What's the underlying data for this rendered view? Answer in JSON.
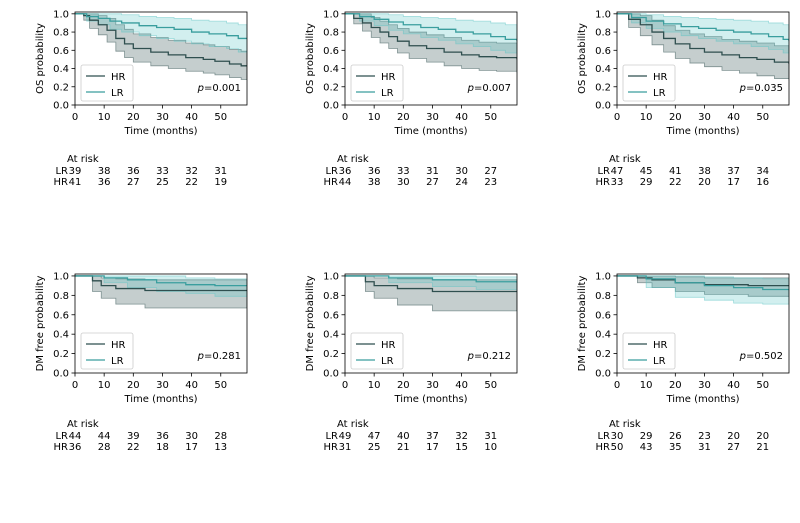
{
  "colors": {
    "HR": "#2f4f4f",
    "LR": "#3a9e9e",
    "HR_band": "#2f4f4f",
    "LR_band": "#5fc4c4"
  },
  "legend_labels": [
    "HR",
    "LR"
  ],
  "at_risk_label": "At risk",
  "chart_data": [
    {
      "id": "os1",
      "type": "line",
      "title": "",
      "xlabel": "Time (months)",
      "ylabel": "OS probability",
      "xlim": [
        0,
        59
      ],
      "ylim": [
        0,
        1.02
      ],
      "xticks": [
        0,
        10,
        20,
        30,
        40,
        50
      ],
      "yticks": [
        0.0,
        0.2,
        0.4,
        0.6,
        0.8,
        1.0
      ],
      "p_value": "p=0.001",
      "series": [
        {
          "name": "HR",
          "points": [
            [
              0,
              1
            ],
            [
              3,
              0.98
            ],
            [
              5,
              0.93
            ],
            [
              8,
              0.88
            ],
            [
              11,
              0.82
            ],
            [
              14,
              0.73
            ],
            [
              17,
              0.67
            ],
            [
              20,
              0.62
            ],
            [
              26,
              0.58
            ],
            [
              32,
              0.55
            ],
            [
              38,
              0.52
            ],
            [
              44,
              0.5
            ],
            [
              48,
              0.48
            ],
            [
              53,
              0.45
            ],
            [
              57,
              0.43
            ],
            [
              59,
              0.43
            ]
          ],
          "upper": [
            1,
            1,
            1,
            0.98,
            0.95,
            0.88,
            0.83,
            0.78,
            0.74,
            0.71,
            0.68,
            0.66,
            0.64,
            0.61,
            0.59,
            0.59
          ],
          "lower": [
            1,
            0.93,
            0.84,
            0.77,
            0.69,
            0.59,
            0.52,
            0.47,
            0.43,
            0.4,
            0.37,
            0.35,
            0.33,
            0.3,
            0.28,
            0.28
          ]
        },
        {
          "name": "LR",
          "points": [
            [
              0,
              1
            ],
            [
              4,
              0.97
            ],
            [
              8,
              0.95
            ],
            [
              12,
              0.92
            ],
            [
              16,
              0.9
            ],
            [
              22,
              0.87
            ],
            [
              28,
              0.85
            ],
            [
              34,
              0.83
            ],
            [
              40,
              0.8
            ],
            [
              46,
              0.78
            ],
            [
              52,
              0.76
            ],
            [
              56,
              0.73
            ],
            [
              59,
              0.73
            ]
          ],
          "upper": [
            1,
            1,
            1,
            1,
            0.99,
            0.97,
            0.96,
            0.95,
            0.93,
            0.92,
            0.9,
            0.88,
            0.88
          ],
          "lower": [
            1,
            0.92,
            0.88,
            0.83,
            0.8,
            0.76,
            0.73,
            0.7,
            0.67,
            0.64,
            0.62,
            0.58,
            0.58
          ]
        }
      ],
      "at_risk": {
        "LR": [
          39,
          38,
          36,
          33,
          32,
          31
        ],
        "HR": [
          41,
          36,
          27,
          25,
          22,
          19
        ]
      }
    },
    {
      "id": "os2",
      "type": "line",
      "title": "",
      "xlabel": "Time (months)",
      "ylabel": "OS probability",
      "xlim": [
        0,
        59
      ],
      "ylim": [
        0,
        1.02
      ],
      "xticks": [
        0,
        10,
        20,
        30,
        40,
        50
      ],
      "yticks": [
        0.0,
        0.2,
        0.4,
        0.6,
        0.8,
        1.0
      ],
      "p_value": "p=0.007",
      "series": [
        {
          "name": "HR",
          "points": [
            [
              0,
              1
            ],
            [
              3,
              0.95
            ],
            [
              6,
              0.9
            ],
            [
              9,
              0.85
            ],
            [
              12,
              0.8
            ],
            [
              15,
              0.75
            ],
            [
              18,
              0.7
            ],
            [
              22,
              0.65
            ],
            [
              28,
              0.62
            ],
            [
              34,
              0.58
            ],
            [
              40,
              0.55
            ],
            [
              46,
              0.53
            ],
            [
              52,
              0.52
            ],
            [
              59,
              0.5
            ]
          ],
          "upper": [
            1,
            1,
            1,
            0.96,
            0.92,
            0.88,
            0.84,
            0.8,
            0.77,
            0.74,
            0.71,
            0.69,
            0.68,
            0.66
          ],
          "lower": [
            1,
            0.89,
            0.81,
            0.74,
            0.68,
            0.62,
            0.57,
            0.51,
            0.47,
            0.43,
            0.4,
            0.38,
            0.37,
            0.35
          ]
        },
        {
          "name": "LR",
          "points": [
            [
              0,
              1
            ],
            [
              5,
              0.97
            ],
            [
              10,
              0.94
            ],
            [
              15,
              0.91
            ],
            [
              20,
              0.88
            ],
            [
              26,
              0.85
            ],
            [
              32,
              0.83
            ],
            [
              38,
              0.8
            ],
            [
              44,
              0.78
            ],
            [
              50,
              0.75
            ],
            [
              55,
              0.72
            ],
            [
              59,
              0.7
            ]
          ],
          "upper": [
            1,
            1,
            1,
            0.99,
            0.97,
            0.96,
            0.95,
            0.93,
            0.92,
            0.9,
            0.88,
            0.87
          ],
          "lower": [
            1,
            0.92,
            0.87,
            0.82,
            0.78,
            0.74,
            0.71,
            0.67,
            0.64,
            0.6,
            0.57,
            0.54
          ]
        }
      ],
      "at_risk": {
        "LR": [
          36,
          36,
          33,
          31,
          30,
          27
        ],
        "HR": [
          44,
          38,
          30,
          27,
          24,
          23
        ]
      }
    },
    {
      "id": "os3",
      "type": "line",
      "title": "",
      "xlabel": "Time (months)",
      "ylabel": "OS probability",
      "xlim": [
        0,
        59
      ],
      "ylim": [
        0,
        1.02
      ],
      "xticks": [
        0,
        10,
        20,
        30,
        40,
        50
      ],
      "yticks": [
        0.0,
        0.2,
        0.4,
        0.6,
        0.8,
        1.0
      ],
      "p_value": "p=0.035",
      "series": [
        {
          "name": "HR",
          "points": [
            [
              0,
              1
            ],
            [
              4,
              0.94
            ],
            [
              8,
              0.88
            ],
            [
              12,
              0.8
            ],
            [
              16,
              0.73
            ],
            [
              20,
              0.67
            ],
            [
              25,
              0.62
            ],
            [
              30,
              0.58
            ],
            [
              36,
              0.55
            ],
            [
              42,
              0.52
            ],
            [
              48,
              0.5
            ],
            [
              54,
              0.47
            ],
            [
              59,
              0.45
            ]
          ],
          "upper": [
            1,
            1,
            0.98,
            0.93,
            0.87,
            0.82,
            0.78,
            0.75,
            0.72,
            0.7,
            0.68,
            0.65,
            0.63
          ],
          "lower": [
            1,
            0.85,
            0.76,
            0.66,
            0.58,
            0.51,
            0.46,
            0.42,
            0.38,
            0.35,
            0.32,
            0.29,
            0.27
          ]
        },
        {
          "name": "LR",
          "points": [
            [
              0,
              1
            ],
            [
              5,
              0.96
            ],
            [
              10,
              0.92
            ],
            [
              16,
              0.89
            ],
            [
              22,
              0.86
            ],
            [
              28,
              0.84
            ],
            [
              34,
              0.82
            ],
            [
              40,
              0.8
            ],
            [
              46,
              0.78
            ],
            [
              52,
              0.75
            ],
            [
              57,
              0.72
            ],
            [
              59,
              0.7
            ]
          ],
          "upper": [
            1,
            1,
            0.99,
            0.97,
            0.96,
            0.95,
            0.94,
            0.93,
            0.92,
            0.9,
            0.88,
            0.87
          ],
          "lower": [
            1,
            0.9,
            0.84,
            0.8,
            0.76,
            0.73,
            0.7,
            0.67,
            0.64,
            0.61,
            0.57,
            0.54
          ]
        }
      ],
      "at_risk": {
        "LR": [
          47,
          45,
          41,
          38,
          37,
          34
        ],
        "HR": [
          33,
          29,
          22,
          20,
          17,
          16
        ]
      }
    },
    {
      "id": "dm1",
      "type": "line",
      "title": "",
      "xlabel": "Time (months)",
      "ylabel": "DM free probability",
      "xlim": [
        0,
        59
      ],
      "ylim": [
        0,
        1.02
      ],
      "xticks": [
        0,
        10,
        20,
        30,
        40,
        50
      ],
      "yticks": [
        0.0,
        0.2,
        0.4,
        0.6,
        0.8,
        1.0
      ],
      "p_value": "p=0.281",
      "series": [
        {
          "name": "HR",
          "points": [
            [
              0,
              1
            ],
            [
              6,
              0.95
            ],
            [
              9,
              0.9
            ],
            [
              14,
              0.87
            ],
            [
              24,
              0.85
            ],
            [
              59,
              0.85
            ]
          ],
          "upper": [
            1,
            1,
            0.98,
            0.97,
            0.96,
            0.96
          ],
          "lower": [
            1,
            0.84,
            0.77,
            0.71,
            0.67,
            0.67
          ]
        },
        {
          "name": "LR",
          "points": [
            [
              0,
              1
            ],
            [
              10,
              0.98
            ],
            [
              18,
              0.96
            ],
            [
              28,
              0.93
            ],
            [
              38,
              0.91
            ],
            [
              48,
              0.9
            ],
            [
              59,
              0.9
            ]
          ],
          "upper": [
            1,
            1,
            1,
            1,
            0.98,
            0.97,
            0.97
          ],
          "lower": [
            1,
            0.93,
            0.88,
            0.84,
            0.82,
            0.79,
            0.79
          ]
        }
      ],
      "at_risk": {
        "LR": [
          44,
          44,
          39,
          36,
          30,
          28
        ],
        "HR": [
          36,
          28,
          22,
          18,
          17,
          13
        ]
      }
    },
    {
      "id": "dm2",
      "type": "line",
      "title": "",
      "xlabel": "Time (months)",
      "ylabel": "DM free probability",
      "xlim": [
        0,
        59
      ],
      "ylim": [
        0,
        1.02
      ],
      "xticks": [
        0,
        10,
        20,
        30,
        40,
        50
      ],
      "yticks": [
        0.0,
        0.2,
        0.4,
        0.6,
        0.8,
        1.0
      ],
      "p_value": "p=0.212",
      "series": [
        {
          "name": "HR",
          "points": [
            [
              0,
              1
            ],
            [
              7,
              0.94
            ],
            [
              10,
              0.9
            ],
            [
              18,
              0.87
            ],
            [
              30,
              0.84
            ],
            [
              59,
              0.84
            ]
          ],
          "upper": [
            1,
            1,
            0.98,
            0.97,
            0.96,
            0.96
          ],
          "lower": [
            1,
            0.84,
            0.77,
            0.7,
            0.64,
            0.64
          ]
        },
        {
          "name": "LR",
          "points": [
            [
              0,
              1
            ],
            [
              15,
              0.98
            ],
            [
              30,
              0.96
            ],
            [
              45,
              0.94
            ],
            [
              59,
              0.93
            ]
          ],
          "upper": [
            1,
            1,
            1,
            0.99,
            0.99
          ],
          "lower": [
            1,
            0.93,
            0.89,
            0.86,
            0.84
          ]
        }
      ],
      "at_risk": {
        "LR": [
          49,
          47,
          40,
          37,
          32,
          31
        ],
        "HR": [
          31,
          25,
          21,
          17,
          15,
          10
        ]
      }
    },
    {
      "id": "dm3",
      "type": "line",
      "title": "",
      "xlabel": "Time (months)",
      "ylabel": "DM free probability",
      "xlim": [
        0,
        59
      ],
      "ylim": [
        0,
        1.02
      ],
      "xticks": [
        0,
        10,
        20,
        30,
        40,
        50
      ],
      "yticks": [
        0.0,
        0.2,
        0.4,
        0.6,
        0.8,
        1.0
      ],
      "p_value": "p=0.502",
      "series": [
        {
          "name": "HR",
          "points": [
            [
              0,
              1
            ],
            [
              7,
              0.98
            ],
            [
              12,
              0.96
            ],
            [
              20,
              0.93
            ],
            [
              30,
              0.91
            ],
            [
              45,
              0.9
            ],
            [
              59,
              0.9
            ]
          ],
          "upper": [
            1,
            1,
            1,
            0.99,
            0.98,
            0.98,
            0.98
          ],
          "lower": [
            1,
            0.93,
            0.88,
            0.84,
            0.81,
            0.79,
            0.79
          ]
        },
        {
          "name": "LR",
          "points": [
            [
              0,
              1
            ],
            [
              10,
              0.97
            ],
            [
              20,
              0.93
            ],
            [
              30,
              0.9
            ],
            [
              40,
              0.88
            ],
            [
              50,
              0.86
            ],
            [
              59,
              0.86
            ]
          ],
          "upper": [
            1,
            1,
            1,
            0.99,
            0.98,
            0.97,
            0.97
          ],
          "lower": [
            1,
            0.88,
            0.78,
            0.75,
            0.72,
            0.71,
            0.71
          ]
        }
      ],
      "at_risk": {
        "LR": [
          30,
          29,
          26,
          23,
          20,
          20
        ],
        "HR": [
          50,
          43,
          35,
          31,
          27,
          21
        ]
      }
    }
  ]
}
